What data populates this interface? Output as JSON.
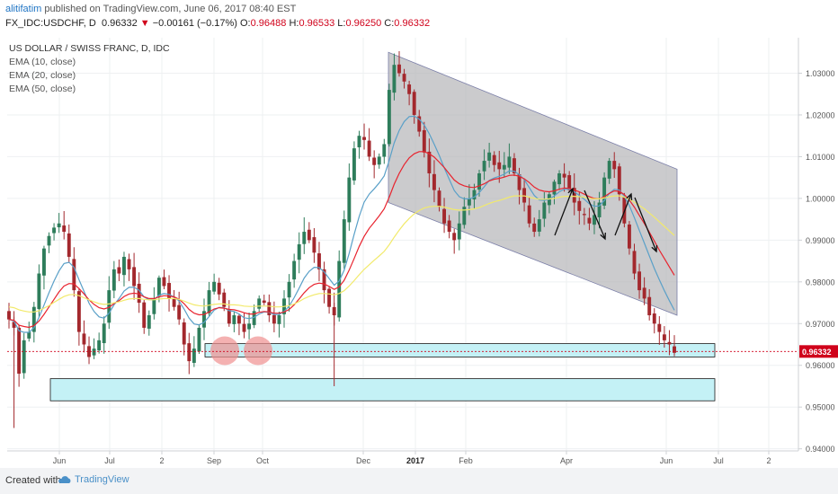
{
  "header": {
    "author": "alitifatim",
    "published_text": "published on TradingView.com, June 06, 2017 08:40 EST",
    "symbol": "FX_IDC:USDCHF, D",
    "last": "0.96332",
    "change": "−0.00161 (−0.17%)",
    "o_label": "O:",
    "o_value": "0.96488",
    "h_label": "H:",
    "h_value": "0.96533",
    "l_label": "L:",
    "l_value": "0.96250",
    "c_label": "C:",
    "c_value": "0.96332"
  },
  "legend": {
    "title": "US DOLLAR / SWISS FRANC, D, IDC",
    "ema10": "EMA (10, close)",
    "ema20": "EMA (20, close)",
    "ema50": "EMA (50, close)"
  },
  "footer": {
    "created": "Created with",
    "brand": "TradingView"
  },
  "chart_data": {
    "type": "candlestick",
    "y_range": [
      0.9395,
      1.0385
    ],
    "y_ticks": [
      "0.94000",
      "0.95000",
      "0.96000",
      "0.97000",
      "0.98000",
      "0.99000",
      "1.00000",
      "1.01000",
      "1.02000",
      "1.03000"
    ],
    "x_ticks": [
      "Jun",
      "Jul",
      "2",
      "Sep",
      "Oct",
      "Dec",
      "2017",
      "Feb",
      "Apr",
      "Jun",
      "Jul",
      "2"
    ],
    "last_price_label": "0.96332",
    "last_price": 0.96332,
    "colors": {
      "up": "#2e7d5b",
      "down": "#a3282d",
      "ema10": "#5aa0c8",
      "ema20": "#e8232e",
      "ema50": "#f2ea6b",
      "channel_fill": "#b5b5b8",
      "zone_fill": "#c4f1f6",
      "circle_fill": "#f09090",
      "last_price": "#d0021b"
    },
    "series": [
      {
        "name": "USDCHF close",
        "values": [
          0.971,
          0.969,
          0.958,
          0.966,
          0.968,
          0.974,
          0.982,
          0.988,
          0.991,
          0.993,
          0.994,
          0.992,
          0.986,
          0.978,
          0.968,
          0.965,
          0.962,
          0.964,
          0.966,
          0.97,
          0.978,
          0.983,
          0.982,
          0.986,
          0.983,
          0.979,
          0.975,
          0.969,
          0.972,
          0.976,
          0.981,
          0.979,
          0.976,
          0.974,
          0.971,
          0.965,
          0.961,
          0.964,
          0.969,
          0.973,
          0.978,
          0.98,
          0.977,
          0.974,
          0.97,
          0.972,
          0.97,
          0.968,
          0.97,
          0.973,
          0.976,
          0.975,
          0.972,
          0.97,
          0.972,
          0.976,
          0.98,
          0.985,
          0.989,
          0.992,
          0.99,
          0.987,
          0.983,
          0.978,
          0.974,
          0.972,
          0.985,
          0.995,
          1.005,
          1.012,
          1.015,
          1.014,
          1.01,
          1.008,
          1.01,
          1.013,
          1.026,
          1.032,
          1.03,
          1.028,
          1.025,
          1.02,
          1.016,
          1.011,
          1.006,
          1.002,
          0.998,
          0.994,
          0.992,
          0.99,
          0.994,
          0.998,
          1.0,
          1.002,
          1.006,
          1.009,
          1.011,
          1.008,
          1.007,
          1.008,
          1.01,
          1.006,
          1.002,
          0.999,
          0.994,
          0.992,
          0.995,
          0.999,
          1.001,
          1.004,
          1.006,
          1.005,
          1.002,
          0.999,
          0.997,
          0.996,
          0.994,
          0.996,
          0.999,
          1.005,
          1.009,
          1.007,
          1.001,
          0.994,
          0.988,
          0.982,
          0.978,
          0.976,
          0.972,
          0.97,
          0.968,
          0.966,
          0.965,
          0.963
        ]
      },
      {
        "name": "EMA (10, close)",
        "values": [
          0.971,
          0.9706,
          0.9683,
          0.9679,
          0.9679,
          0.969,
          0.9715,
          0.9744,
          0.9774,
          0.9802,
          0.9826,
          0.9844,
          0.9847,
          0.9835,
          0.9805,
          0.9777,
          0.9749,
          0.9729,
          0.9716,
          0.9713,
          0.9725,
          0.9745,
          0.976,
          0.9778,
          0.9787,
          0.9787,
          0.978,
          0.9764,
          0.9757,
          0.9758,
          0.9768,
          0.9772,
          0.977,
          0.9764,
          0.9754,
          0.9735,
          0.9713,
          0.9699,
          0.9697,
          0.9703,
          0.9717,
          0.9732,
          0.9739,
          0.9738,
          0.9731,
          0.9729,
          0.9723,
          0.9714,
          0.9712,
          0.9715,
          0.9723,
          0.9728,
          0.9727,
          0.9722,
          0.9722,
          0.9729,
          0.9742,
          0.9762,
          0.9785,
          0.9809,
          0.9825,
          0.9835,
          0.9834,
          0.9824,
          0.9808,
          0.9792,
          0.9802,
          0.9828,
          0.9868,
          0.9914,
          0.9957,
          0.9991,
          1.001,
          1.0023,
          1.0037,
          1.0054,
          1.0091,
          1.0133,
          1.0163,
          1.0184,
          1.0196,
          1.0197,
          1.019,
          1.0176,
          1.0155,
          1.013,
          1.0103,
          1.0073,
          1.0046,
          1.0019,
          1.0004,
          0.9999,
          0.9999,
          1.0003,
          1.0014,
          1.0028,
          1.0043,
          1.0049,
          1.0053,
          1.0058,
          1.0066,
          1.0065,
          1.0057,
          1.0045,
          1.0026,
          1.0007,
          0.9996,
          0.9995,
          0.9998,
          1.0006,
          1.0016,
          1.0022,
          1.0022,
          1.0016,
          1.0007,
          0.9998,
          0.9987,
          0.9981,
          0.9982,
          0.9995,
          1.0012,
          1.0022,
          1.002,
          1.0005,
          0.9983,
          0.9954,
          0.9923,
          0.9893,
          0.9862,
          0.9832,
          0.9805,
          0.9779,
          0.9755,
          0.9732
        ]
      },
      {
        "name": "EMA (20, close)",
        "values": [
          0.971,
          0.9708,
          0.9696,
          0.9693,
          0.9691,
          0.9695,
          0.9706,
          0.9722,
          0.974,
          0.9758,
          0.9776,
          0.979,
          0.9796,
          0.9795,
          0.9784,
          0.9771,
          0.9757,
          0.9746,
          0.9738,
          0.9735,
          0.9739,
          0.9748,
          0.9755,
          0.9765,
          0.9771,
          0.9773,
          0.9771,
          0.9764,
          0.976,
          0.976,
          0.9764,
          0.9767,
          0.9766,
          0.9764,
          0.9758,
          0.9748,
          0.9734,
          0.9725,
          0.9721,
          0.9722,
          0.9728,
          0.9735,
          0.9738,
          0.9737,
          0.9734,
          0.9733,
          0.973,
          0.9726,
          0.9723,
          0.9723,
          0.9727,
          0.9729,
          0.9728,
          0.9725,
          0.9725,
          0.9728,
          0.9734,
          0.9745,
          0.9759,
          0.9774,
          0.9786,
          0.9794,
          0.9797,
          0.9795,
          0.9789,
          0.9782,
          0.9788,
          0.9804,
          0.9828,
          0.9856,
          0.9885,
          0.9909,
          0.9928,
          0.9943,
          0.9958,
          0.9975,
          1.0003,
          1.0034,
          1.006,
          1.0081,
          1.0097,
          1.0107,
          1.0112,
          1.0112,
          1.0107,
          1.0099,
          1.0087,
          1.0074,
          1.0059,
          1.0044,
          1.0035,
          1.003,
          1.0027,
          1.0026,
          1.003,
          1.0035,
          1.0042,
          1.0046,
          1.0048,
          1.0051,
          1.0055,
          1.0056,
          1.0053,
          1.0047,
          1.0038,
          1.0027,
          1.002,
          1.0017,
          1.0016,
          1.0018,
          1.0022,
          1.0025,
          1.0024,
          1.002,
          1.0016,
          1.001,
          1.0004,
          1.0,
          0.9999,
          1.0004,
          1.0012,
          1.0018,
          1.0017,
          1.0009,
          0.9996,
          0.9979,
          0.9959,
          0.994,
          0.9919,
          0.9898,
          0.9876,
          0.9856,
          0.9836,
          0.9816
        ]
      },
      {
        "name": "EMA (50, close)",
        "values": [
          0.974,
          0.9738,
          0.9733,
          0.973,
          0.9728,
          0.9728,
          0.9731,
          0.9737,
          0.9743,
          0.9751,
          0.9758,
          0.9765,
          0.9769,
          0.977,
          0.9767,
          0.9762,
          0.9757,
          0.9752,
          0.9748,
          0.9746,
          0.9747,
          0.975,
          0.9752,
          0.9756,
          0.9759,
          0.976,
          0.976,
          0.9758,
          0.9757,
          0.9757,
          0.9759,
          0.976,
          0.976,
          0.976,
          0.9758,
          0.9754,
          0.9749,
          0.9745,
          0.9743,
          0.9742,
          0.9744,
          0.9746,
          0.9747,
          0.9747,
          0.9745,
          0.9745,
          0.9744,
          0.9742,
          0.9741,
          0.9741,
          0.9742,
          0.9742,
          0.9742,
          0.974,
          0.974,
          0.9741,
          0.9743,
          0.9747,
          0.9753,
          0.976,
          0.9765,
          0.9769,
          0.9772,
          0.9772,
          0.9771,
          0.9769,
          0.9772,
          0.9779,
          0.979,
          0.9803,
          0.9817,
          0.983,
          0.9841,
          0.9852,
          0.9862,
          0.9873,
          0.9889,
          0.9907,
          0.9924,
          0.9939,
          0.9952,
          0.9963,
          0.9971,
          0.9977,
          0.998,
          0.9981,
          0.9981,
          0.9979,
          0.9976,
          0.9973,
          0.9972,
          0.9972,
          0.9973,
          0.9975,
          0.9978,
          0.9983,
          0.9988,
          0.9992,
          0.9995,
          0.9999,
          1.0003,
          1.0006,
          1.0006,
          1.0006,
          1.0003,
          1.0,
          0.9998,
          0.9998,
          0.9999,
          1.0,
          1.0003,
          1.0005,
          1.0005,
          1.0005,
          1.0004,
          1.0003,
          1.0,
          0.9999,
          0.9999,
          1.0001,
          1.0004,
          1.0006,
          1.0006,
          1.0003,
          0.9998,
          0.9991,
          0.9983,
          0.9975,
          0.9965,
          0.9955,
          0.9944,
          0.9933,
          0.9922,
          0.9911
        ]
      }
    ],
    "channel": {
      "upper_start": [
        0.0,
        1.035
      ],
      "upper_end": [
        1.0,
        1.007
      ],
      "lower_start": [
        0.0,
        0.999
      ],
      "lower_end": [
        1.0,
        0.972
      ]
    },
    "support_zones": [
      {
        "low": 0.962,
        "high": 0.9652
      },
      {
        "low": 0.9515,
        "high": 0.9568
      }
    ]
  }
}
